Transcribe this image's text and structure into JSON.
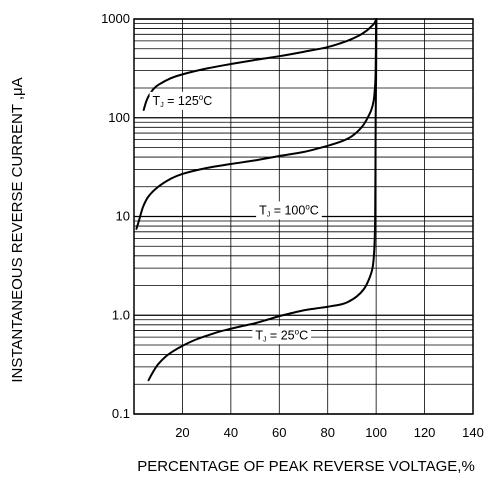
{
  "chart_data": {
    "type": "line",
    "title": "",
    "xlabel": "PERCENTAGE OF PEAK REVERSE VOLTAGE,%",
    "ylabel": "INSTANTANEOUS REVERSE CURRENT ,μA",
    "xlim": [
      0,
      140
    ],
    "ylim": [
      0.1,
      1000
    ],
    "y_scale": "log",
    "grid": true,
    "x_ticks": [
      {
        "value": 20,
        "label": "20"
      },
      {
        "value": 40,
        "label": "40"
      },
      {
        "value": 60,
        "label": "60"
      },
      {
        "value": 80,
        "label": "80"
      },
      {
        "value": 100,
        "label": "100"
      },
      {
        "value": 120,
        "label": "120"
      },
      {
        "value": 140,
        "label": "140"
      }
    ],
    "y_ticks": [
      {
        "value": 0.1,
        "label": "0.1"
      },
      {
        "value": 1,
        "label": "1.0"
      },
      {
        "value": 10,
        "label": "10"
      },
      {
        "value": 100,
        "label": "100"
      },
      {
        "value": 1000,
        "label": "1000"
      }
    ],
    "series": [
      {
        "annotation": {
          "prefix": "T",
          "sub": "J",
          "eq": " = 125",
          "sup": "o",
          "unit": "C",
          "x": 20,
          "y": 135
        },
        "x": [
          4,
          5,
          6,
          8,
          10,
          15,
          20,
          30,
          40,
          50,
          60,
          70,
          80,
          88,
          93,
          96,
          98,
          99.2,
          99.7,
          100
        ],
        "y": [
          120,
          145,
          165,
          195,
          215,
          250,
          275,
          315,
          350,
          385,
          420,
          465,
          520,
          600,
          680,
          760,
          840,
          900,
          950,
          1000
        ]
      },
      {
        "annotation": {
          "prefix": "T",
          "sub": "J",
          "eq": " = 100",
          "sup": "o",
          "unit": "C",
          "x": 64,
          "y": 10.5
        },
        "x": [
          1,
          2,
          3,
          4,
          6,
          10,
          15,
          20,
          30,
          40,
          50,
          60,
          70,
          80,
          86,
          90,
          94,
          96,
          98,
          99,
          99.5,
          99.8,
          100
        ],
        "y": [
          7.5,
          9,
          11,
          13,
          16,
          20,
          24,
          27,
          31,
          34,
          37,
          41,
          45,
          52,
          58,
          65,
          80,
          95,
          120,
          150,
          200,
          300,
          1000
        ]
      },
      {
        "annotation": {
          "prefix": "T",
          "sub": "J",
          "eq": " = 25",
          "sup": "o",
          "unit": "C",
          "x": 61,
          "y": 0.57
        },
        "x": [
          6,
          8,
          10,
          13,
          16,
          20,
          25,
          30,
          35,
          40,
          45,
          50,
          55,
          60,
          65,
          70,
          75,
          80,
          85,
          88,
          92,
          95,
          97,
          98.5,
          99.2,
          99.6,
          99.8,
          100,
          100.1
        ],
        "y": [
          0.22,
          0.27,
          0.32,
          0.38,
          0.43,
          0.49,
          0.56,
          0.62,
          0.68,
          0.73,
          0.78,
          0.83,
          0.9,
          0.98,
          1.05,
          1.12,
          1.17,
          1.22,
          1.28,
          1.35,
          1.55,
          1.85,
          2.3,
          3.0,
          4.5,
          10,
          100,
          300,
          1000
        ]
      }
    ]
  }
}
